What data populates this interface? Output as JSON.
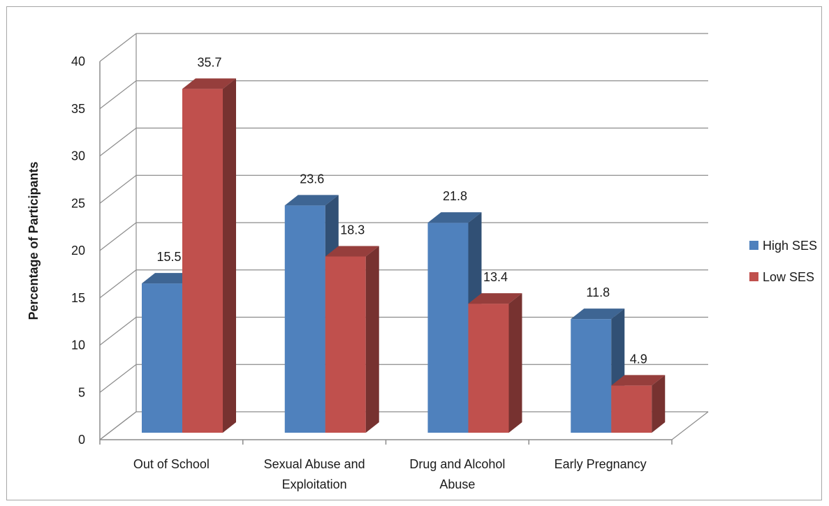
{
  "chart_data": {
    "type": "bar",
    "title": "",
    "xlabel": "",
    "ylabel": "Percentage of Participants",
    "ylim": [
      0,
      40
    ],
    "yticks": [
      0,
      5,
      10,
      15,
      20,
      25,
      30,
      35,
      40
    ],
    "grid": true,
    "legend_position": "right",
    "categories": [
      [
        "Out of School"
      ],
      [
        "Sexual Abuse and",
        "Exploitation"
      ],
      [
        "Drug and Alcohol",
        "Abuse"
      ],
      [
        "Early Pregnancy"
      ]
    ],
    "series": [
      {
        "name": "High SES",
        "color": "#4f81bd",
        "values": [
          15.5,
          23.6,
          21.8,
          11.8
        ]
      },
      {
        "name": "Low SES",
        "color": "#c0504d",
        "values": [
          35.7,
          18.3,
          13.4,
          4.9
        ]
      }
    ]
  }
}
